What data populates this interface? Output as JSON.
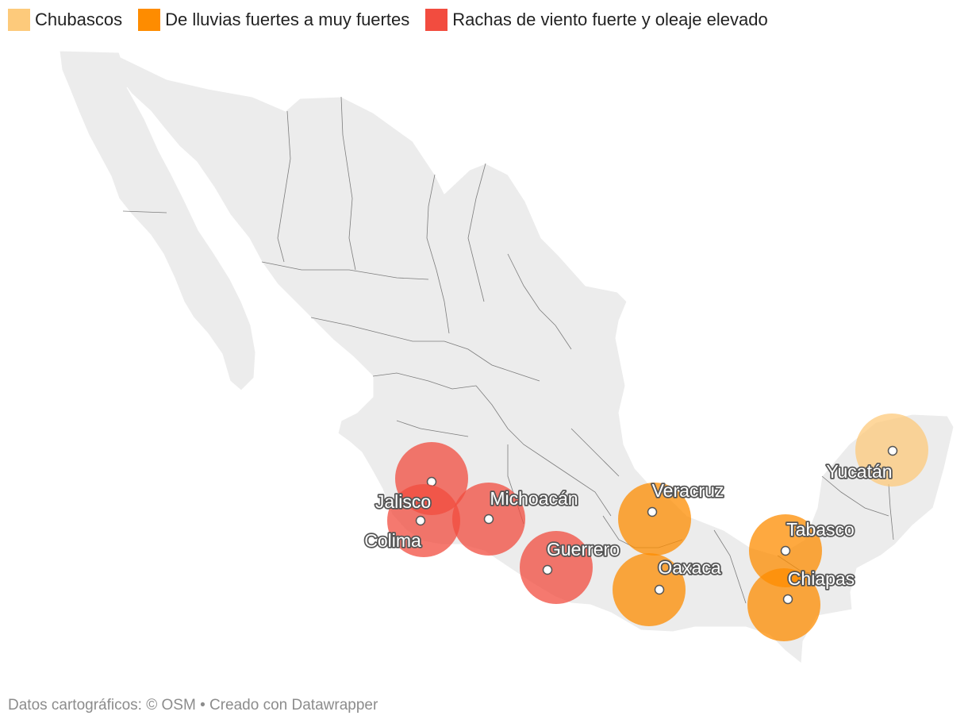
{
  "legend": {
    "items": [
      {
        "label": "Chubascos",
        "color": "#fdca7b"
      },
      {
        "label": "De lluvias fuertes a muy fuertes",
        "color": "#fe8c00"
      },
      {
        "label": "Rachas de viento fuerte y oleaje elevado",
        "color": "#f24c3f"
      }
    ]
  },
  "map": {
    "land_color": "#ececec",
    "border_color": "#4d4d4d",
    "states": [
      {
        "name": "Jalisco",
        "category": 2
      },
      {
        "name": "Colima",
        "category": 2
      },
      {
        "name": "Michoacán",
        "category": 2
      },
      {
        "name": "Guerrero",
        "category": 2
      },
      {
        "name": "Veracruz",
        "category": 1
      },
      {
        "name": "Oaxaca",
        "category": 1
      },
      {
        "name": "Tabasco",
        "category": 1
      },
      {
        "name": "Chiapas",
        "category": 1
      },
      {
        "name": "Yucatán",
        "category": 0
      }
    ]
  },
  "footer": {
    "text": "Datos cartográficos: © OSM  • Creado con Datawrapper"
  }
}
